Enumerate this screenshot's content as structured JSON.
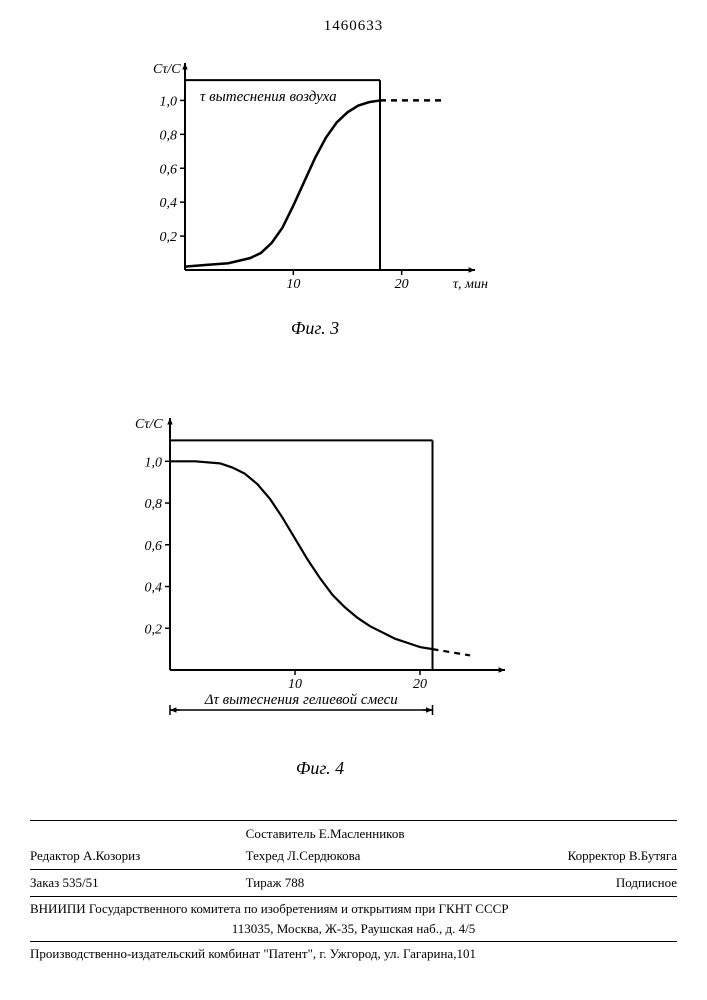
{
  "doc_number": "1460633",
  "chart3": {
    "type": "line",
    "y_label": "Cτ/C",
    "title_inside": "τ вытеснения воздуха",
    "x_label": "τ, мин",
    "caption": "Фиг. 3",
    "y_ticks": [
      "0,2",
      "0,4",
      "0,6",
      "0,8",
      "1,0"
    ],
    "y_tick_vals": [
      0.2,
      0.4,
      0.6,
      0.8,
      1.0
    ],
    "x_ticks": [
      "10",
      "20"
    ],
    "x_tick_vals": [
      10,
      20
    ],
    "xlim": [
      0,
      24
    ],
    "ylim": [
      0,
      1.15
    ],
    "vline_at": 18,
    "curve": [
      [
        0,
        0.02
      ],
      [
        2,
        0.03
      ],
      [
        4,
        0.04
      ],
      [
        6,
        0.07
      ],
      [
        7,
        0.1
      ],
      [
        8,
        0.16
      ],
      [
        9,
        0.25
      ],
      [
        10,
        0.38
      ],
      [
        11,
        0.52
      ],
      [
        12,
        0.66
      ],
      [
        13,
        0.78
      ],
      [
        14,
        0.87
      ],
      [
        15,
        0.93
      ],
      [
        16,
        0.97
      ],
      [
        17,
        0.99
      ],
      [
        18,
        1.0
      ]
    ],
    "dashed": [
      [
        18,
        1.0
      ],
      [
        24,
        1.0
      ]
    ],
    "line_color": "#000000",
    "line_width": 2.5,
    "axis_color": "#000000",
    "axis_width": 2,
    "bg": "#ffffff",
    "tick_fontsize": 14,
    "title_fontsize": 15
  },
  "chart4": {
    "type": "line",
    "y_label": "Cτ/C",
    "x_label_below": "Δτ вытеснения гелиевой смеси",
    "caption": "Фиг. 4",
    "y_ticks": [
      "0,2",
      "0,4",
      "0,6",
      "0,8",
      "1,0"
    ],
    "y_tick_vals": [
      0.2,
      0.4,
      0.6,
      0.8,
      1.0
    ],
    "x_ticks": [
      "10",
      "20"
    ],
    "x_tick_vals": [
      10,
      20
    ],
    "xlim": [
      0,
      24
    ],
    "ylim": [
      0,
      1.15
    ],
    "curve": [
      [
        0,
        1.0
      ],
      [
        2,
        1.0
      ],
      [
        4,
        0.99
      ],
      [
        5,
        0.97
      ],
      [
        6,
        0.94
      ],
      [
        7,
        0.89
      ],
      [
        8,
        0.82
      ],
      [
        9,
        0.73
      ],
      [
        10,
        0.63
      ],
      [
        11,
        0.53
      ],
      [
        12,
        0.44
      ],
      [
        13,
        0.36
      ],
      [
        14,
        0.3
      ],
      [
        15,
        0.25
      ],
      [
        16,
        0.21
      ],
      [
        17,
        0.18
      ],
      [
        18,
        0.15
      ],
      [
        19,
        0.13
      ],
      [
        20,
        0.11
      ],
      [
        21,
        0.1
      ]
    ],
    "dashed": [
      [
        21,
        0.1
      ],
      [
        24,
        0.07
      ]
    ],
    "line_color": "#000000",
    "line_width": 2.2,
    "axis_color": "#000000",
    "axis_width": 2,
    "bg": "#ffffff",
    "tick_fontsize": 14,
    "title_fontsize": 15
  },
  "footer": {
    "row1": {
      "left": "Редактор А.Козориз",
      "center_top": "Составитель Е.Масленников",
      "center": "Техред Л.Сердюкова",
      "right": "Корректор В.Бутяга"
    },
    "row2": {
      "left": "Заказ 535/51",
      "center": "Тираж 788",
      "right": "Подписное"
    },
    "line1": "ВНИИПИ Государственного комитета по изобретениям и открытиям при ГКНТ СССР",
    "line2": "113035, Москва, Ж-35, Раушская наб., д. 4/5",
    "line3": "Производственно-издательский комбинат \"Патент\", г. Ужгород, ул. Гагарина,101"
  }
}
